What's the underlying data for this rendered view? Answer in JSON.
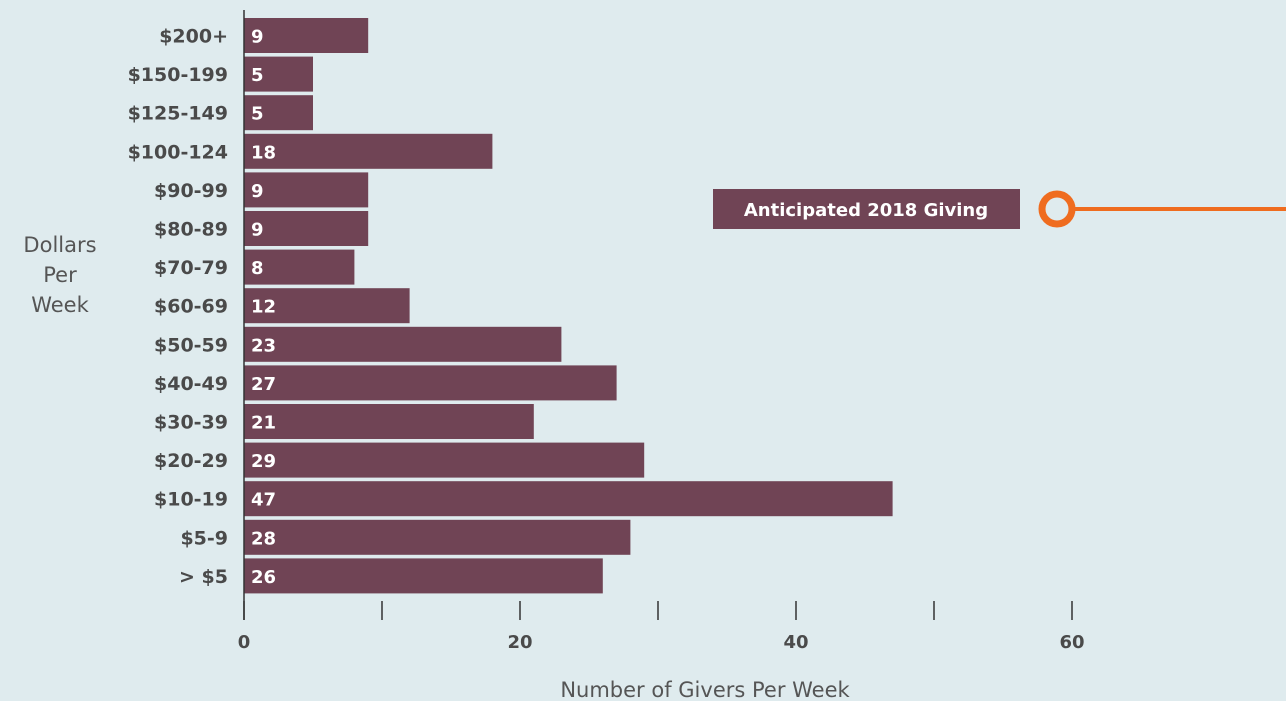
{
  "chart_data": {
    "type": "bar",
    "orientation": "horizontal",
    "categories": [
      "$200+",
      "$150-199",
      "$125-149",
      "$100-124",
      "$90-99",
      "$80-89",
      "$70-79",
      "$60-69",
      "$50-59",
      "$40-49",
      "$30-39",
      "$20-29",
      "$10-19",
      "$5-9",
      "> $5"
    ],
    "values": [
      9,
      5,
      5,
      18,
      9,
      9,
      8,
      12,
      23,
      27,
      21,
      29,
      47,
      28,
      26
    ],
    "series": [
      {
        "name": "Anticipated 2018 Giving",
        "values": [
          9,
          5,
          5,
          18,
          9,
          9,
          8,
          12,
          23,
          27,
          21,
          29,
          47,
          28,
          26
        ]
      }
    ],
    "xlabel": "Number of Givers Per Week",
    "ylabel": [
      "Dollars",
      "Per",
      "Week"
    ],
    "xlim": [
      0,
      60
    ],
    "x_ticks": [
      0,
      10,
      20,
      30,
      40,
      50,
      60
    ],
    "x_tick_labels": [
      "0",
      "",
      "20",
      "",
      "40",
      "",
      "60"
    ],
    "grid": false,
    "legend": "top-right",
    "colors": {
      "bar": "#704455",
      "background": "#dfebee",
      "accent": "#ef6c1f",
      "axis": "#333333",
      "text": "#4a4a4a"
    }
  }
}
